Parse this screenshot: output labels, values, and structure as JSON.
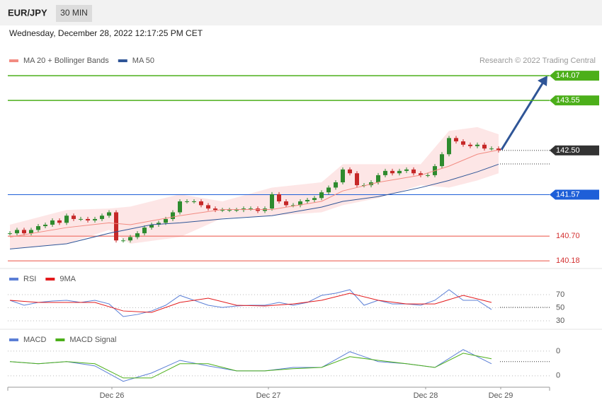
{
  "header": {
    "symbol": "EUR/JPY",
    "interval": "30 MIN",
    "timestamp": "Wednesday, December 28, 2022 12:17:25 PM CET"
  },
  "chart_data": [
    {
      "type": "candlestick",
      "credit": "Research © 2022 Trading Central",
      "up_color": "#2e8b2e",
      "down_color": "#c62828",
      "closes": [
        140.76,
        140.83,
        140.76,
        140.83,
        140.91,
        140.94,
        141.03,
        140.98,
        141.13,
        141.06,
        141.06,
        141.03,
        141.06,
        141.13,
        141.2,
        140.61,
        140.61,
        140.68,
        140.76,
        140.88,
        140.94,
        140.98,
        141.06,
        141.2,
        141.43,
        141.43,
        141.43,
        141.35,
        141.28,
        141.25,
        141.25,
        141.25,
        141.25,
        141.28,
        141.28,
        141.23,
        141.28,
        141.58,
        141.43,
        141.35,
        141.35,
        141.43,
        141.46,
        141.5,
        141.62,
        141.72,
        141.83,
        142.1,
        142.02,
        141.77,
        141.77,
        141.83,
        141.98,
        142.07,
        142.02,
        142.07,
        142.1,
        142.02,
        141.98,
        141.98,
        142.17,
        142.42,
        142.76,
        142.69,
        142.62,
        142.59,
        142.62,
        142.54,
        142.54,
        142.5
      ],
      "series": [
        {
          "name": "MA 20 + Bollinger Bands",
          "color": "#f28b82",
          "band_color": "#fde0e0",
          "x": [
            0,
            8,
            14,
            17,
            24,
            30,
            37,
            44,
            47,
            52,
            58,
            62,
            66,
            69
          ],
          "values": [
            140.68,
            140.88,
            140.98,
            140.94,
            141.13,
            141.26,
            141.26,
            141.43,
            141.65,
            141.83,
            141.98,
            142.17,
            142.42,
            142.51
          ],
          "upper": [
            140.94,
            141.25,
            141.28,
            141.32,
            141.58,
            141.43,
            141.72,
            141.83,
            142.21,
            142.21,
            142.21,
            142.91,
            142.99,
            142.84
          ],
          "lower": [
            140.43,
            140.54,
            140.83,
            140.54,
            140.68,
            141.08,
            141.13,
            141.2,
            141.35,
            141.5,
            141.77,
            141.72,
            141.87,
            142.02
          ]
        },
        {
          "name": "MA 50",
          "color": "#2f5597",
          "x": [
            0,
            8,
            14,
            20,
            24,
            30,
            37,
            44,
            47,
            52,
            58,
            62,
            66,
            69
          ],
          "values": [
            140.43,
            140.54,
            140.76,
            140.94,
            140.98,
            141.06,
            141.13,
            141.31,
            141.43,
            141.53,
            141.72,
            141.87,
            142.05,
            142.21
          ]
        }
      ],
      "levels": {
        "values": [
          144.07,
          143.55,
          142.5,
          141.57,
          140.7,
          140.18
        ],
        "value_labels": [
          "144.07",
          "143.55",
          "142.50",
          "141.57",
          "140.70",
          "140.18"
        ],
        "colors": [
          "#4caf1a",
          "#4caf1a",
          "#333333",
          "#1e5fd8",
          "#f28b82",
          "#f28b82"
        ]
      },
      "xlim": [
        -0.3,
        76.2
      ],
      "ylim": [
        140.05,
        144.62
      ]
    },
    {
      "type": "line",
      "series": [
        {
          "name": "RSI",
          "color": "#5b7fd6",
          "x": [
            0,
            2,
            4,
            6,
            8,
            10,
            12,
            14,
            16,
            18,
            20,
            22,
            24,
            26,
            28,
            30,
            32,
            34,
            36,
            38,
            40,
            42,
            44,
            46,
            48,
            50,
            52,
            54,
            56,
            58,
            60,
            62,
            64,
            66,
            68
          ],
          "values": [
            61.4,
            53.8,
            58.1,
            60.3,
            61.4,
            58.1,
            61.4,
            55.9,
            36.5,
            39.7,
            45.1,
            53.8,
            68.9,
            61.4,
            53.8,
            50.5,
            52.7,
            53.8,
            53.8,
            58.1,
            53.8,
            58.1,
            68.9,
            72.2,
            77.6,
            53.8,
            61.4,
            55.9,
            55.9,
            53.8,
            61.4,
            77.6,
            61.4,
            61.4,
            47.3
          ]
        },
        {
          "name": "9MA",
          "color": "#e31a1c",
          "x": [
            0,
            4,
            8,
            12,
            16,
            20,
            24,
            28,
            32,
            36,
            40,
            44,
            48,
            52,
            56,
            60,
            64,
            68
          ],
          "values": [
            61.4,
            58.1,
            58.1,
            58.1,
            45.1,
            42.9,
            58.1,
            64.6,
            53.8,
            52.7,
            55.9,
            61.4,
            72.2,
            61.4,
            55.9,
            55.9,
            68.9,
            58.1
          ]
        }
      ],
      "xlim": [
        -0.3,
        76.2
      ],
      "ylim": [
        21.4,
        104.6
      ],
      "yticks": [
        30,
        50,
        70
      ]
    },
    {
      "type": "line",
      "series": [
        {
          "name": "MACD",
          "color": "#5b7fd6",
          "x": [
            0,
            4,
            8,
            12,
            16,
            20,
            24,
            28,
            32,
            36,
            40,
            44,
            48,
            52,
            56,
            60,
            64,
            68
          ],
          "values": [
            0.06,
            -0.01,
            0.06,
            -0.08,
            -0.58,
            -0.31,
            0.1,
            -0.08,
            -0.24,
            -0.24,
            -0.13,
            -0.13,
            0.38,
            0.06,
            -0.01,
            -0.13,
            0.45,
            -0.01
          ]
        },
        {
          "name": "MACD Signal",
          "color": "#4caf1a",
          "x": [
            0,
            4,
            8,
            12,
            16,
            20,
            24,
            28,
            32,
            36,
            40,
            44,
            48,
            52,
            56,
            60,
            64,
            68
          ],
          "values": [
            0.06,
            -0.01,
            0.06,
            -0.01,
            -0.47,
            -0.47,
            -0.01,
            -0.01,
            -0.24,
            -0.24,
            -0.17,
            -0.13,
            0.22,
            0.1,
            -0.01,
            -0.13,
            0.33,
            0.15
          ]
        }
      ],
      "xlim": [
        -0.3,
        76.2
      ],
      "ylim": [
        -0.77,
        0.9
      ],
      "yticks": [
        {
          "value": 0.4,
          "label": "0"
        },
        {
          "value": -0.4,
          "label": "0"
        }
      ],
      "xticks": [
        {
          "value": 14.4,
          "label": "Dec 26"
        },
        {
          "value": 36.5,
          "label": "Dec 27"
        },
        {
          "value": 58.7,
          "label": "Dec 28"
        },
        {
          "value": 69.3,
          "label": "Dec 29"
        }
      ]
    }
  ]
}
